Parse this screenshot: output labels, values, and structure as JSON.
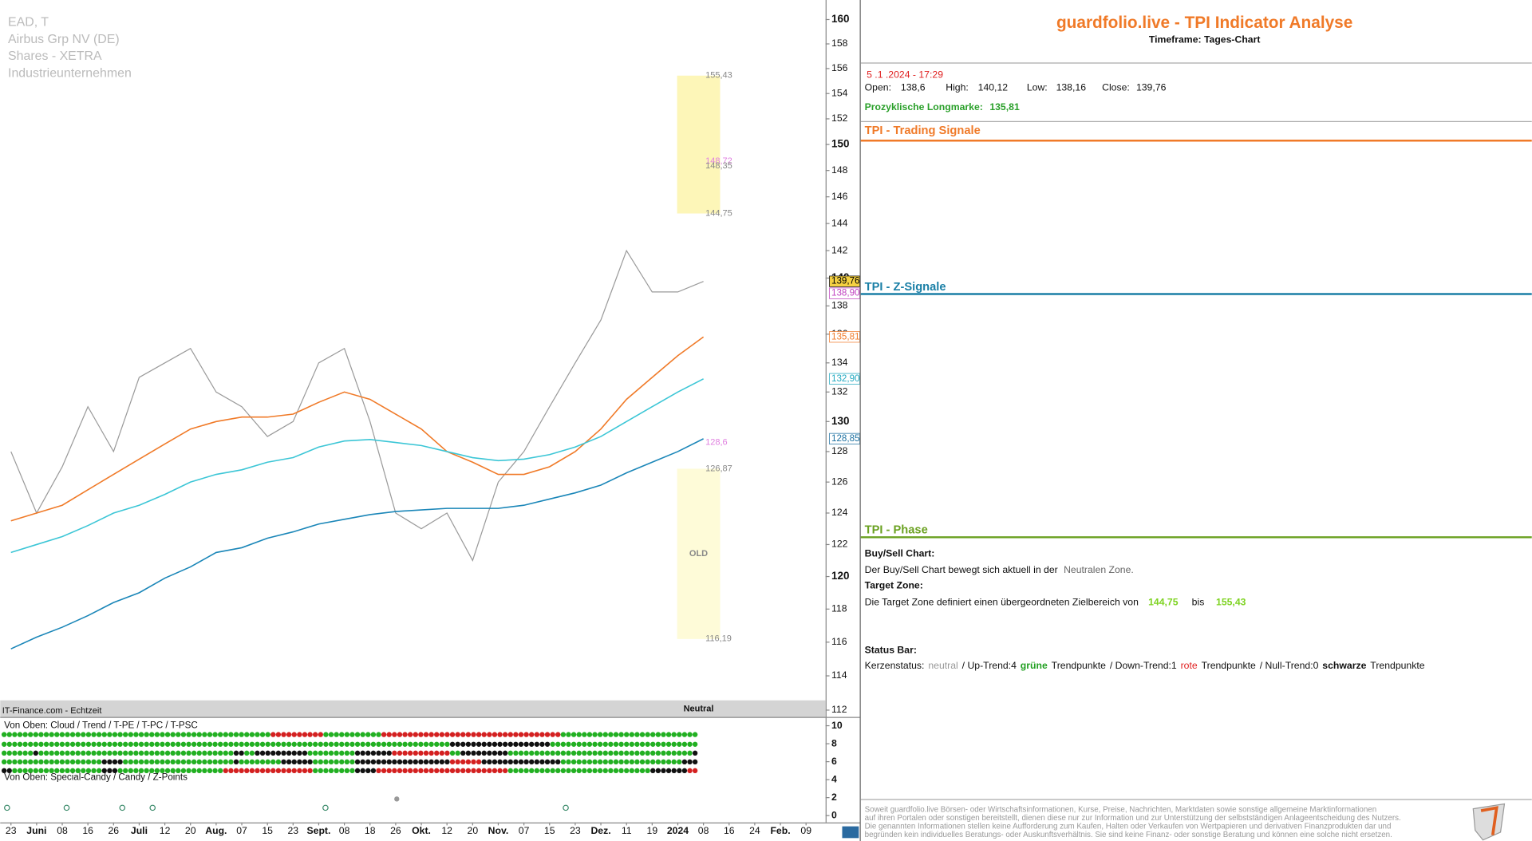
{
  "chart_data": {
    "type": "line",
    "info_lines": [
      "EAD, T",
      "Airbus Grp NV (DE)",
      "Shares - XETRA",
      "Industrieunternehmen"
    ],
    "categories": [
      "23",
      "Juni",
      "08",
      "16",
      "26",
      "Juli",
      "12",
      "20",
      "Aug.",
      "07",
      "15",
      "23",
      "Sept.",
      "08",
      "18",
      "26",
      "Okt.",
      "12",
      "20",
      "Nov.",
      "07",
      "15",
      "23",
      "Dez.",
      "11",
      "19",
      "2024",
      "08",
      "16",
      "24",
      "Feb.",
      "09"
    ],
    "series": [
      {
        "color": "#9a9a9a",
        "values": [
          128,
          124,
          127,
          131,
          128,
          133,
          134,
          135,
          132,
          131,
          129,
          130,
          134,
          135,
          130,
          124,
          123,
          124,
          121,
          126,
          128,
          131,
          134,
          137,
          142,
          139,
          139,
          139.76,
          null,
          null,
          null,
          null
        ]
      },
      {
        "color": "#f07a28",
        "values": [
          123.5,
          124,
          124.5,
          125.5,
          126.5,
          127.5,
          128.5,
          129.5,
          130,
          130.3,
          130.3,
          130.5,
          131.3,
          132,
          131.5,
          130.5,
          129.5,
          128,
          127.3,
          126.5,
          126.5,
          127,
          128,
          129.5,
          131.5,
          133,
          134.5,
          135.81,
          null,
          null,
          null,
          null
        ]
      },
      {
        "color": "#3cc6d6",
        "values": [
          121.5,
          122,
          122.5,
          123.2,
          124,
          124.5,
          125.2,
          126,
          126.5,
          126.8,
          127.3,
          127.6,
          128.3,
          128.7,
          128.8,
          128.6,
          128.4,
          128,
          127.6,
          127.4,
          127.5,
          127.8,
          128.3,
          129,
          130,
          131,
          132,
          132.9,
          null,
          null,
          null,
          null
        ]
      },
      {
        "color": "#1a86b8",
        "values": [
          115.6,
          116.3,
          116.9,
          117.6,
          118.4,
          119,
          119.9,
          120.6,
          121.5,
          121.8,
          122.4,
          122.8,
          123.3,
          123.6,
          123.9,
          124.1,
          124.2,
          124.3,
          124.3,
          124.3,
          124.5,
          124.9,
          125.3,
          125.8,
          126.6,
          127.3,
          128,
          128.85,
          null,
          null,
          null,
          null
        ]
      }
    ],
    "ylim": [
      112,
      160
    ],
    "log_scale": true,
    "yticks": [
      112,
      114,
      116,
      118,
      120,
      122,
      124,
      126,
      128,
      130,
      132,
      134,
      136,
      138,
      140,
      142,
      144,
      146,
      148,
      150,
      152,
      154,
      156,
      158,
      160
    ],
    "price_tags": [
      {
        "value": 139.76,
        "label": "139,76",
        "color": "#000000",
        "fill": "#f5d142"
      },
      {
        "value": 138.9,
        "label": "138,90",
        "color": "#c040c0",
        "fill": "#ffffff"
      },
      {
        "value": 135.81,
        "label": "135,81",
        "color": "#f07a28",
        "fill": "#ffffff"
      },
      {
        "value": 132.9,
        "label": "132,90",
        "color": "#20a8c0",
        "fill": "#ffffff"
      },
      {
        "value": 128.85,
        "label": "128,85",
        "color": "#1a6fa0",
        "fill": "#ffffff"
      }
    ],
    "zone_labels": [
      {
        "value": 155.43,
        "label": "155,43"
      },
      {
        "value": 148.72,
        "label": "148,72"
      },
      {
        "value": 148.35,
        "label": "148,35"
      },
      {
        "value": 144.75,
        "label": "144,75"
      },
      {
        "value": 128.6,
        "label": "128,6"
      },
      {
        "value": 126.87,
        "label": "126,87"
      },
      {
        "value": 116.19,
        "label": "116,19"
      }
    ],
    "zone_note": "OLD",
    "source": "IT-Finance.com - Echtzeit",
    "status": "Neutral",
    "indicator": {
      "title": "Von Oben: Cloud / Trend / T-PE / T-PC / T-PSC",
      "subtitle": "Von Oben: Special-Candy / Candy / Z-Points",
      "ylim": [
        0,
        10
      ],
      "yticks": [
        0,
        2,
        4,
        6,
        8,
        10
      ]
    }
  },
  "analysis": {
    "title": "guardfolio.live - TPI Indicator Analyse",
    "timeframe": "Timeframe: Tages-Chart",
    "datetime": "5 .1 .2024 - 17:29",
    "ohlc": [
      {
        "label": "Open:",
        "value": "138,6"
      },
      {
        "label": "High:",
        "value": "140,12"
      },
      {
        "label": "Low:",
        "value": "138,16"
      },
      {
        "label": "Close:",
        "value": "139,76"
      }
    ],
    "longmarke": {
      "label": "Prozyklische Longmarke:",
      "value": "135,81"
    },
    "sections": [
      "TPI - Trading Signale",
      "TPI - Z-Signale",
      "TPI - Phase"
    ],
    "buy_sell": {
      "heading": "Buy/Sell Chart:",
      "text": "Der Buy/Sell Chart bewegt sich aktuell in der",
      "zone": "Neutralen Zone."
    },
    "target": {
      "heading": "Target Zone:",
      "text": "Die Target Zone definiert einen übergeordneten Zielbereich von",
      "from": "144,75",
      "and": "bis",
      "to": "155,43"
    },
    "status": {
      "heading": "Status Bar:",
      "parts": [
        "Kerzenstatus:",
        "neutral",
        "/ Up-Trend:4",
        "grüne",
        "Trendpunkte",
        "/ Down-Trend:1",
        "rote",
        "Trendpunkte",
        "/ Null-Trend:0",
        "schwarze",
        "Trendpunkte"
      ]
    },
    "disclaimer": [
      "Soweit guardfolio.live Börsen- oder Wirtschaftsinformationen, Kurse, Preise, Nachrichten, Marktdaten sowie sonstige allgemeine Marktinformationen",
      "auf ihren Portalen oder sonstigen bereitstellt, dienen diese nur zur Information und zur Unterstützung der selbstständigen Anlageentscheidung des Nutzers.",
      "Die genannten Informationen stellen keine Aufforderung zum Kaufen, Halten oder Verkaufen von Wertpapieren und derivativen Finanzprodukten dar und",
      "begründen kein individuelles Beratungs- oder Auskunftsverhältnis. Sie sind keine Finanz- oder sonstige Beratung und können eine solche nicht ersetzen."
    ]
  }
}
